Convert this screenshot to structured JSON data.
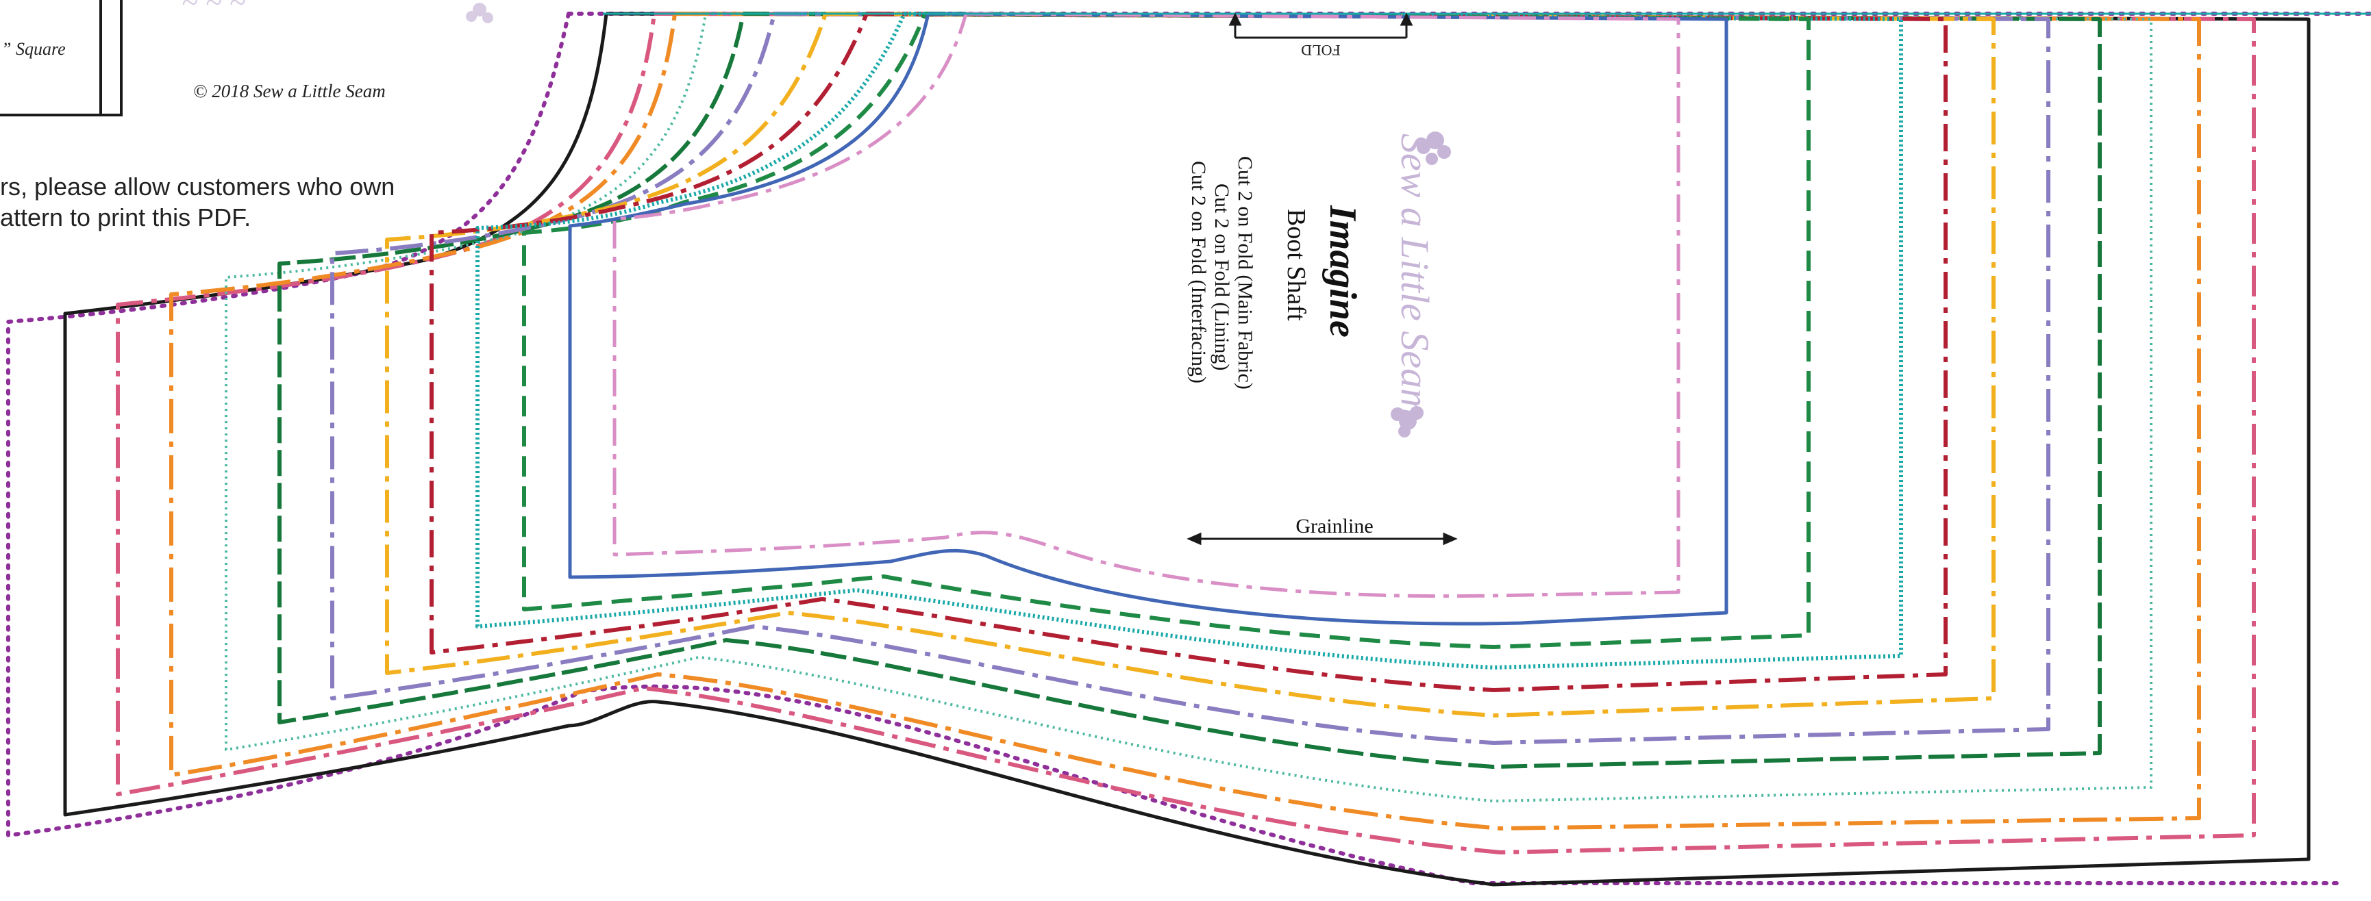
{
  "legend_box": {
    "size_text": "” Square"
  },
  "copyright": "© 2018 Sew a Little Seam",
  "notice": {
    "line1": "rs, please allow customers who own",
    "line2": "attern to print this PDF."
  },
  "fold_label": "FOLD",
  "pattern": {
    "title": "Imagine",
    "piece_name": "Boot Shaft",
    "cut_lines": [
      "Cut 2 on Fold (Main Fabric)",
      "Cut 2 on Fold (Lining)",
      "Cut 2 on Fold (Interfacing)"
    ]
  },
  "watermark": "Sew a Little Seam",
  "grainline_label": "Grainline",
  "size_line_colors": {
    "black": "#1a1a1a",
    "purple_dotted": "#8e2f9a",
    "pink": "#d9587f",
    "orange": "#f08a24",
    "teal_dotted": "#4cb8a0",
    "green": "#16783a",
    "lavender": "#8a7cc0",
    "gold": "#f2b01e",
    "crimson": "#b21f32",
    "teal": "#19a8a8",
    "dark_green": "#1f8a45",
    "blue": "#4166b5",
    "light_pink": "#d98fc6"
  }
}
